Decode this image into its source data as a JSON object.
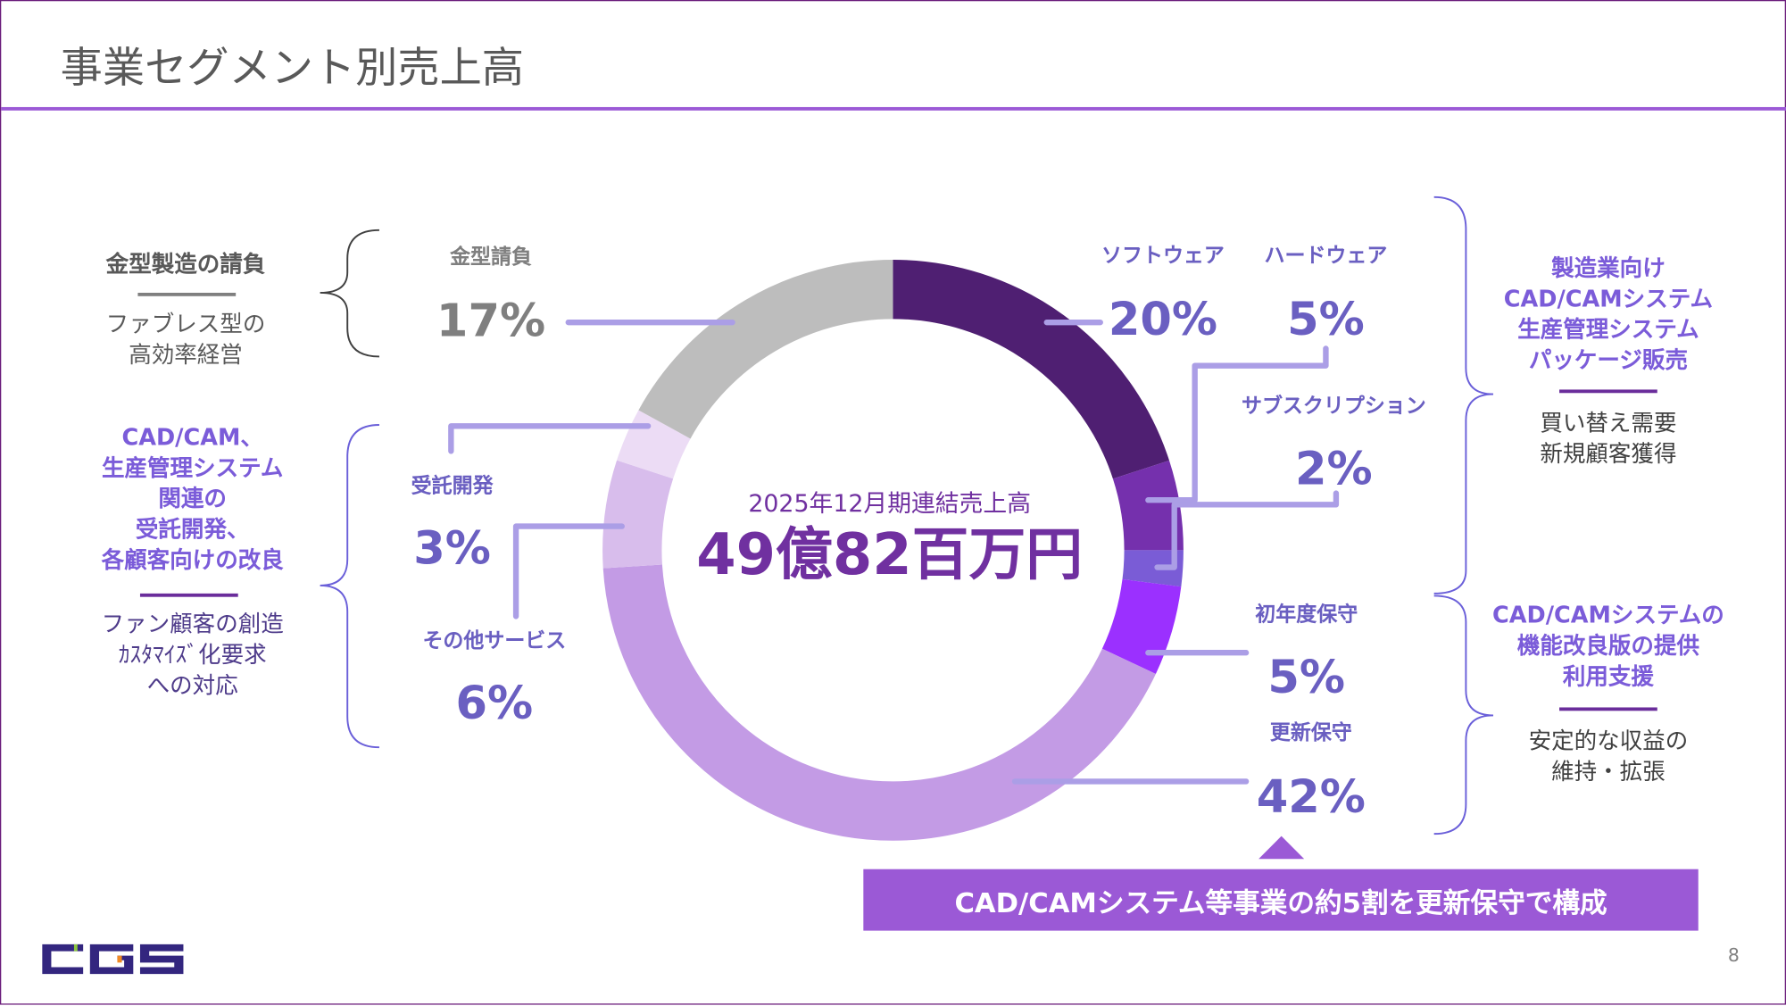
{
  "header": {
    "title": "事業セグメント別売上高"
  },
  "center": {
    "subtitle": "2025年12月期連結売上高",
    "total": "49億82百万円"
  },
  "left": {
    "group1": {
      "title": "金型製造の請負",
      "desc": [
        "ファブレス型の",
        "高効率経営"
      ]
    },
    "group2": {
      "title": [
        "CAD/CAM、",
        "生産管理システム",
        "関連の",
        "受託開発、",
        "各顧客向けの改良"
      ],
      "desc": [
        "ファン顧客の創造",
        "ｶｽﾀﾏｲｽﾞ化要求",
        "への対応"
      ]
    }
  },
  "right": {
    "group1": {
      "title": [
        "製造業向け",
        "CAD/CAMシステム",
        "生産管理システム",
        "パッケージ販売"
      ],
      "desc": [
        "買い替え需要",
        "新規顧客獲得"
      ]
    },
    "group2": {
      "title": [
        "CAD/CAMシステムの",
        "機能改良版の提供",
        "利用支援"
      ],
      "desc": [
        "安定的な収益の",
        "維持・拡張"
      ]
    }
  },
  "banner": "CAD/CAMシステム等事業の約5割を更新保守で構成",
  "page_number": "8",
  "logo": "CGS",
  "chart_data": {
    "type": "pie",
    "title": "2025年12月期連結売上高",
    "total_label": "49億82百万円",
    "categories": [
      "ソフトウェア",
      "ハードウェア",
      "サブスクリプション",
      "初年度保守",
      "更新保守",
      "その他サービス",
      "受託開発",
      "金型請負"
    ],
    "values": [
      20,
      5,
      2,
      5,
      42,
      6,
      3,
      17
    ],
    "labels": [
      "20%",
      "5%",
      "2%",
      "5%",
      "42%",
      "6%",
      "3%",
      "17%"
    ],
    "colors": [
      "#4f1f72",
      "#7530ad",
      "#7a5cd6",
      "#9b30ff",
      "#c39be5",
      "#d8bdec",
      "#ecdcf5",
      "#bdbdbd"
    ]
  }
}
